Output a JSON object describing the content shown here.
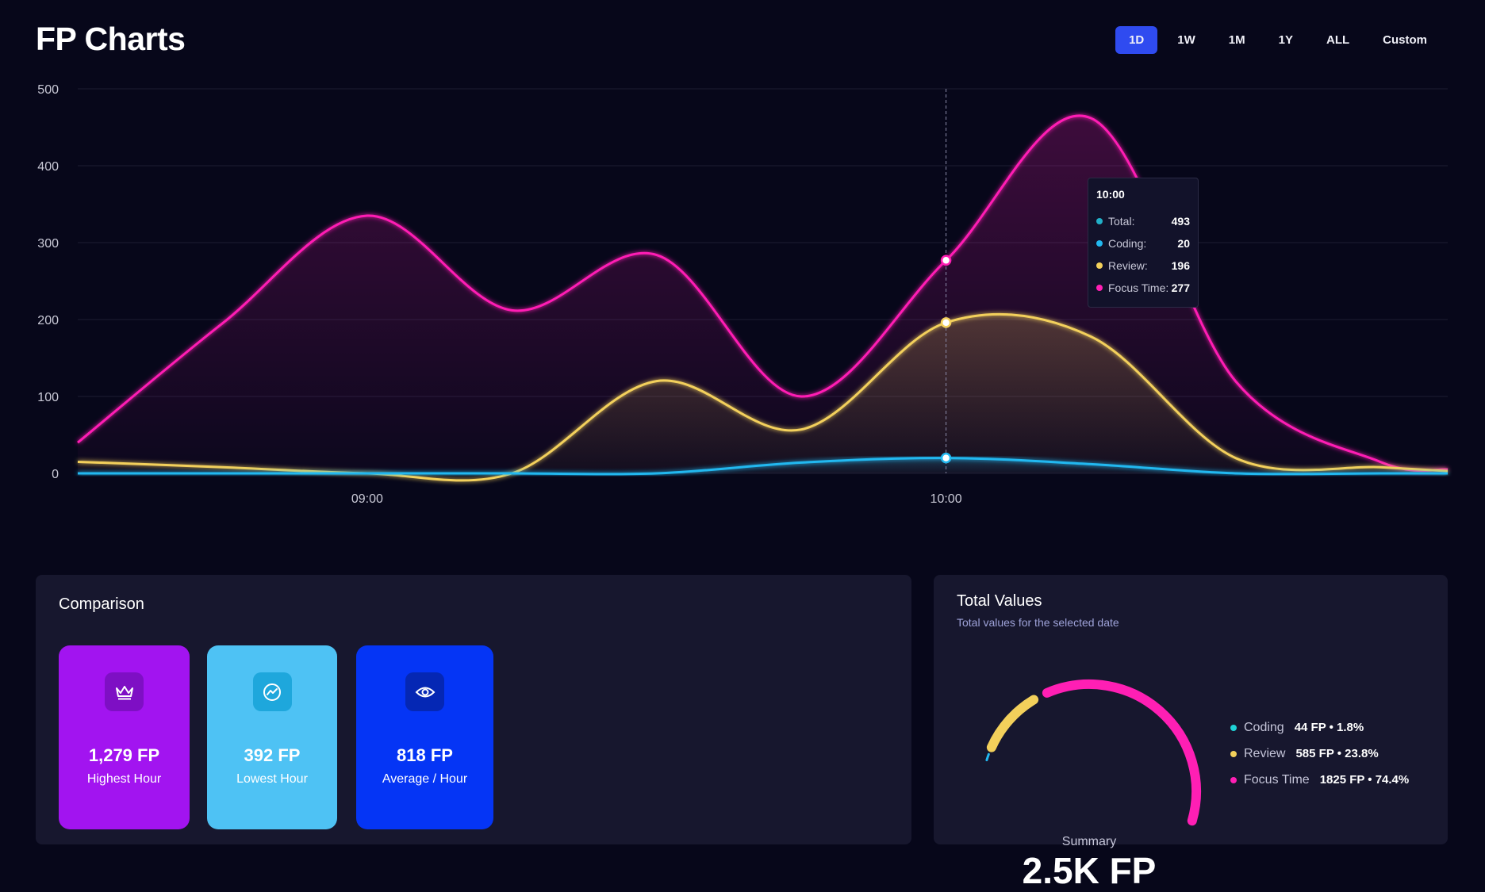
{
  "title": "FP Charts",
  "ranges": [
    {
      "label": "1D",
      "active": true
    },
    {
      "label": "1W",
      "active": false
    },
    {
      "label": "1M",
      "active": false
    },
    {
      "label": "1Y",
      "active": false
    },
    {
      "label": "ALL",
      "active": false
    },
    {
      "label": "Custom",
      "active": false
    }
  ],
  "colors": {
    "accent": "#2f4bf0",
    "coding": "#22b8f0",
    "review": "#f3d05b",
    "focus": "#ff1fb4",
    "card_purple": "#a214f0",
    "card_cyan": "#4ec2f4",
    "card_blue": "#0535f5"
  },
  "chart_data": {
    "type": "area",
    "x": [
      "08:30",
      "08:45",
      "09:00",
      "09:15",
      "09:30",
      "09:45",
      "10:00",
      "10:15",
      "10:30",
      "10:45",
      "10:52"
    ],
    "x_tick_labels": [
      "09:00",
      "10:00"
    ],
    "y_ticks": [
      0,
      100,
      200,
      300,
      400,
      500
    ],
    "ylim": [
      0,
      500
    ],
    "grid": true,
    "hover_x": "10:00",
    "series": [
      {
        "name": "Focus Time",
        "color": "#ff1fb4",
        "values": [
          40,
          195,
          335,
          212,
          284,
          100,
          277,
          462,
          120,
          15,
          5
        ]
      },
      {
        "name": "Review",
        "color": "#f3d05b",
        "values": [
          15,
          8,
          0,
          0,
          120,
          57,
          196,
          178,
          20,
          8,
          3
        ]
      },
      {
        "name": "Coding",
        "color": "#22b8f0",
        "values": [
          0,
          0,
          0,
          0,
          0,
          14,
          20,
          12,
          0,
          0,
          0
        ]
      }
    ]
  },
  "tooltip": {
    "time": "10:00",
    "rows": [
      {
        "label": "Total:",
        "value": "493",
        "color": "#22b0c8"
      },
      {
        "label": "Coding:",
        "value": "20",
        "color": "#22b8f0"
      },
      {
        "label": "Review:",
        "value": "196",
        "color": "#f3d05b"
      },
      {
        "label": "Focus Time:",
        "value": "277",
        "color": "#ff1fb4"
      }
    ]
  },
  "comparison": {
    "title": "Comparison",
    "cards": [
      {
        "value": "1,279 FP",
        "label": "Highest Hour",
        "icon": "crown-icon"
      },
      {
        "value": "392 FP",
        "label": "Lowest Hour",
        "icon": "trend-icon"
      },
      {
        "value": "818 FP",
        "label": "Average / Hour",
        "icon": "eye-icon"
      }
    ]
  },
  "totals": {
    "title": "Total Values",
    "subtitle": "Total values for the selected date",
    "summary_label": "Summary",
    "summary_value": "2.5K FP",
    "gauge_fractions": {
      "coding": 0.018,
      "review": 0.238,
      "focus": 0.744
    },
    "legend": [
      {
        "name": "Coding",
        "value": "44 FP • 1.8%",
        "color": "#1fd2d6"
      },
      {
        "name": "Review",
        "value": "585 FP • 23.8%",
        "color": "#f3d05b"
      },
      {
        "name": "Focus Time",
        "value": "1825 FP • 74.4%",
        "color": "#ff1fb4"
      }
    ]
  }
}
